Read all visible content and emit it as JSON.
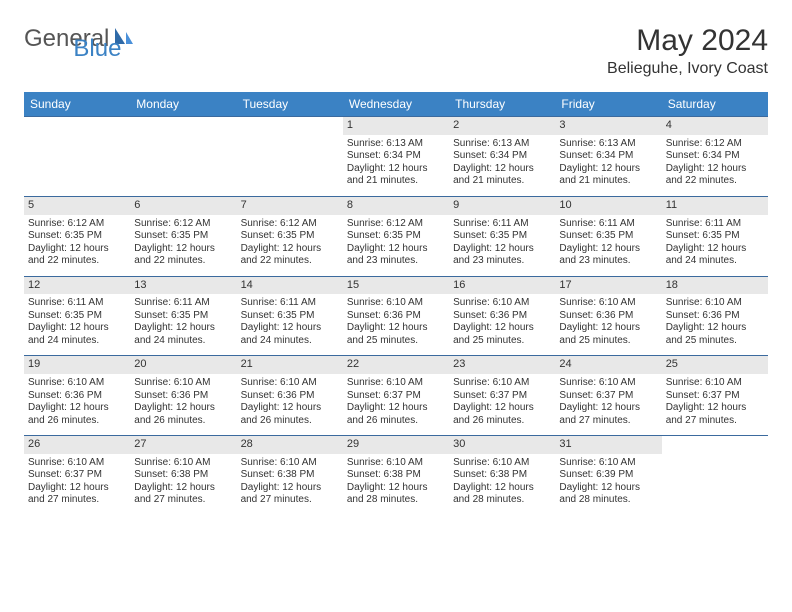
{
  "logo": {
    "text1": "General",
    "text2": "Blue"
  },
  "title": "May 2024",
  "subtitle": "Belieguhe, Ivory Coast",
  "colors": {
    "header_bg": "#3b82c4",
    "header_text": "#ffffff",
    "daybar_bg": "#e8e8e8",
    "row_border": "#3b6a9e",
    "logo_gray": "#555555",
    "logo_blue": "#3b82c4"
  },
  "weekdays": [
    "Sunday",
    "Monday",
    "Tuesday",
    "Wednesday",
    "Thursday",
    "Friday",
    "Saturday"
  ],
  "weeks": [
    [
      null,
      null,
      null,
      {
        "d": "1",
        "sr": "6:13 AM",
        "ss": "6:34 PM",
        "dh": "12",
        "dm": "21"
      },
      {
        "d": "2",
        "sr": "6:13 AM",
        "ss": "6:34 PM",
        "dh": "12",
        "dm": "21"
      },
      {
        "d": "3",
        "sr": "6:13 AM",
        "ss": "6:34 PM",
        "dh": "12",
        "dm": "21"
      },
      {
        "d": "4",
        "sr": "6:12 AM",
        "ss": "6:34 PM",
        "dh": "12",
        "dm": "22"
      }
    ],
    [
      {
        "d": "5",
        "sr": "6:12 AM",
        "ss": "6:35 PM",
        "dh": "12",
        "dm": "22"
      },
      {
        "d": "6",
        "sr": "6:12 AM",
        "ss": "6:35 PM",
        "dh": "12",
        "dm": "22"
      },
      {
        "d": "7",
        "sr": "6:12 AM",
        "ss": "6:35 PM",
        "dh": "12",
        "dm": "22"
      },
      {
        "d": "8",
        "sr": "6:12 AM",
        "ss": "6:35 PM",
        "dh": "12",
        "dm": "23"
      },
      {
        "d": "9",
        "sr": "6:11 AM",
        "ss": "6:35 PM",
        "dh": "12",
        "dm": "23"
      },
      {
        "d": "10",
        "sr": "6:11 AM",
        "ss": "6:35 PM",
        "dh": "12",
        "dm": "23"
      },
      {
        "d": "11",
        "sr": "6:11 AM",
        "ss": "6:35 PM",
        "dh": "12",
        "dm": "24"
      }
    ],
    [
      {
        "d": "12",
        "sr": "6:11 AM",
        "ss": "6:35 PM",
        "dh": "12",
        "dm": "24"
      },
      {
        "d": "13",
        "sr": "6:11 AM",
        "ss": "6:35 PM",
        "dh": "12",
        "dm": "24"
      },
      {
        "d": "14",
        "sr": "6:11 AM",
        "ss": "6:35 PM",
        "dh": "12",
        "dm": "24"
      },
      {
        "d": "15",
        "sr": "6:10 AM",
        "ss": "6:36 PM",
        "dh": "12",
        "dm": "25"
      },
      {
        "d": "16",
        "sr": "6:10 AM",
        "ss": "6:36 PM",
        "dh": "12",
        "dm": "25"
      },
      {
        "d": "17",
        "sr": "6:10 AM",
        "ss": "6:36 PM",
        "dh": "12",
        "dm": "25"
      },
      {
        "d": "18",
        "sr": "6:10 AM",
        "ss": "6:36 PM",
        "dh": "12",
        "dm": "25"
      }
    ],
    [
      {
        "d": "19",
        "sr": "6:10 AM",
        "ss": "6:36 PM",
        "dh": "12",
        "dm": "26"
      },
      {
        "d": "20",
        "sr": "6:10 AM",
        "ss": "6:36 PM",
        "dh": "12",
        "dm": "26"
      },
      {
        "d": "21",
        "sr": "6:10 AM",
        "ss": "6:36 PM",
        "dh": "12",
        "dm": "26"
      },
      {
        "d": "22",
        "sr": "6:10 AM",
        "ss": "6:37 PM",
        "dh": "12",
        "dm": "26"
      },
      {
        "d": "23",
        "sr": "6:10 AM",
        "ss": "6:37 PM",
        "dh": "12",
        "dm": "26"
      },
      {
        "d": "24",
        "sr": "6:10 AM",
        "ss": "6:37 PM",
        "dh": "12",
        "dm": "27"
      },
      {
        "d": "25",
        "sr": "6:10 AM",
        "ss": "6:37 PM",
        "dh": "12",
        "dm": "27"
      }
    ],
    [
      {
        "d": "26",
        "sr": "6:10 AM",
        "ss": "6:37 PM",
        "dh": "12",
        "dm": "27"
      },
      {
        "d": "27",
        "sr": "6:10 AM",
        "ss": "6:38 PM",
        "dh": "12",
        "dm": "27"
      },
      {
        "d": "28",
        "sr": "6:10 AM",
        "ss": "6:38 PM",
        "dh": "12",
        "dm": "27"
      },
      {
        "d": "29",
        "sr": "6:10 AM",
        "ss": "6:38 PM",
        "dh": "12",
        "dm": "28"
      },
      {
        "d": "30",
        "sr": "6:10 AM",
        "ss": "6:38 PM",
        "dh": "12",
        "dm": "28"
      },
      {
        "d": "31",
        "sr": "6:10 AM",
        "ss": "6:39 PM",
        "dh": "12",
        "dm": "28"
      },
      null
    ]
  ],
  "labels": {
    "sunrise": "Sunrise:",
    "sunset": "Sunset:",
    "daylight": "Daylight:",
    "hours": "hours",
    "and": "and",
    "minutes": "minutes."
  }
}
